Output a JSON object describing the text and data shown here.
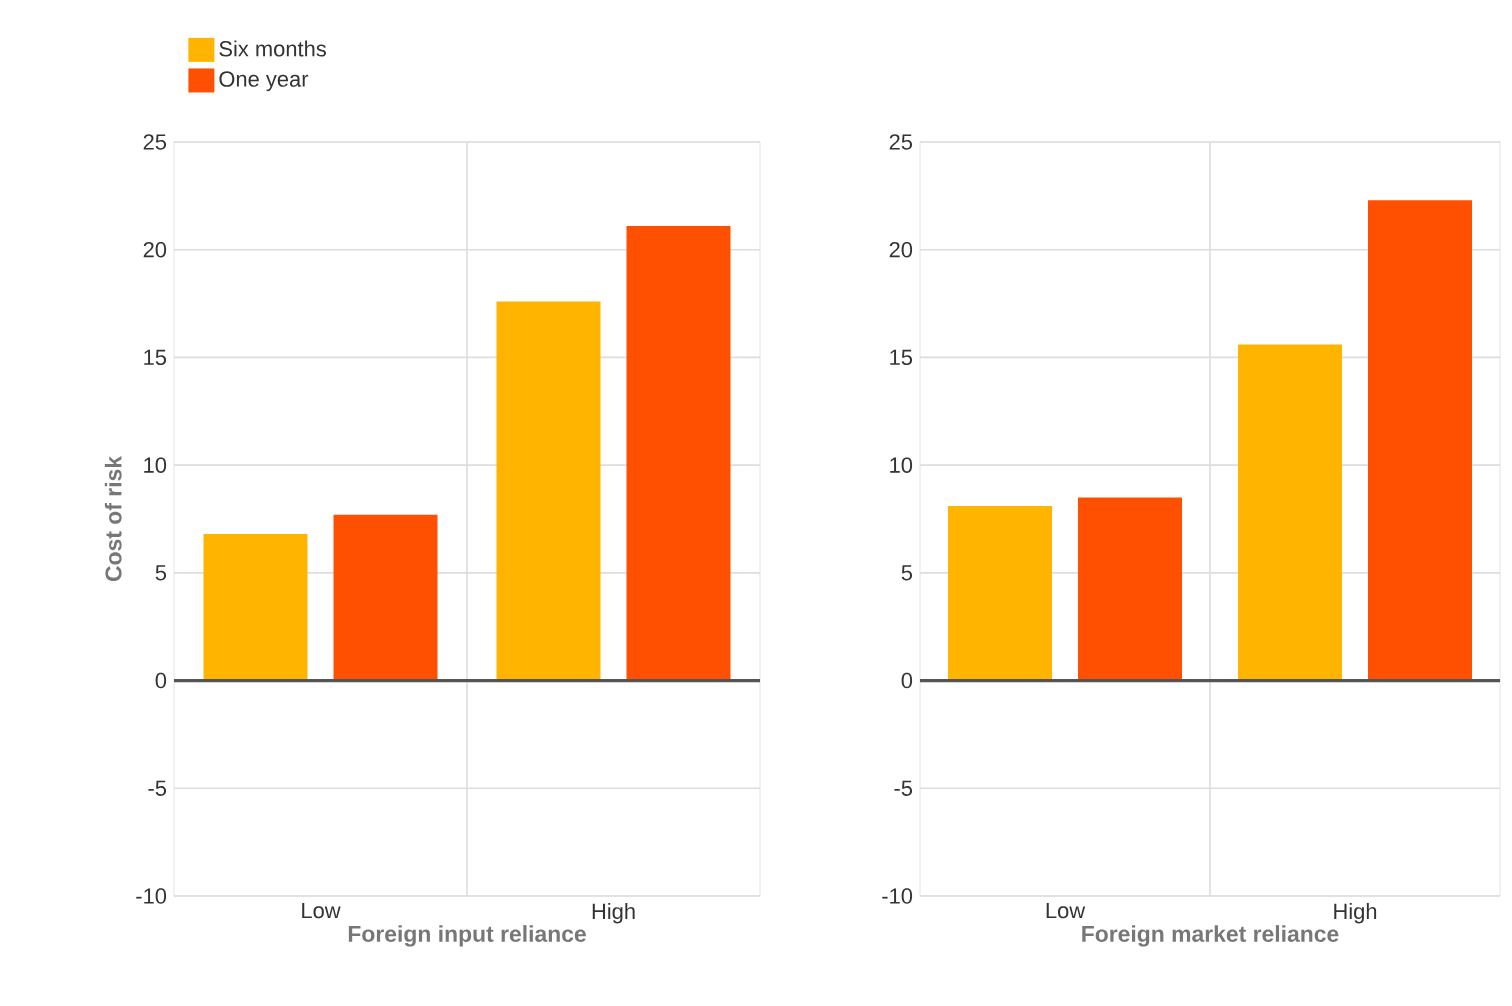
{
  "chart_data": [
    {
      "type": "bar",
      "xlabel": "Foreign input reliance",
      "ylabel": "Cost of risk",
      "categories": [
        "Low",
        "High"
      ],
      "series": [
        {
          "name": "Six months",
          "color": "#ffb400",
          "values": [
            6.8,
            17.6
          ]
        },
        {
          "name": "One year",
          "color": "#ff4f00",
          "values": [
            7.7,
            21.1
          ]
        }
      ],
      "ylim": [
        -10,
        25
      ],
      "yticks": [
        -10,
        -5,
        0,
        5,
        10,
        15,
        20,
        25
      ],
      "grid": true,
      "legend": "top left"
    },
    {
      "type": "bar",
      "xlabel": "Foreign market reliance",
      "categories": [
        "Low",
        "High"
      ],
      "series": [
        {
          "color": "#ffb400",
          "values": [
            8.1,
            15.6
          ]
        },
        {
          "color": "#ff4f00",
          "values": [
            8.5,
            22.3
          ]
        }
      ],
      "ylim": [
        -10,
        25
      ],
      "yticks": [
        -10,
        -5,
        0,
        5,
        10,
        15,
        20,
        25
      ],
      "grid": true
    }
  ]
}
